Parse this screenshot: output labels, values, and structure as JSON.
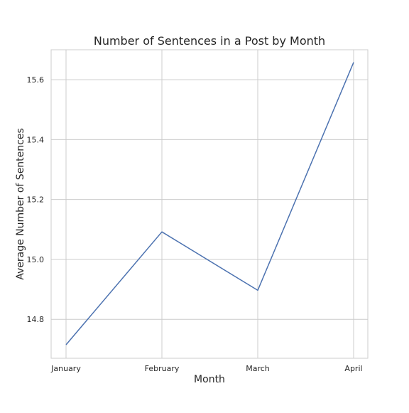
{
  "chart_data": {
    "type": "line",
    "title": "Number of Sentences in a Post by Month",
    "xlabel": "Month",
    "ylabel": "Average Number of Sentences",
    "categories": [
      "January",
      "February",
      "March",
      "April"
    ],
    "series": [
      {
        "values": [
          14.715,
          15.092,
          14.897,
          15.658
        ],
        "color": "#4c72b0"
      }
    ],
    "yticks": [
      14.8,
      15.0,
      15.2,
      15.4,
      15.6
    ],
    "ytick_labels": [
      "14.8",
      "15.0",
      "15.2",
      "15.4",
      "15.6"
    ],
    "ylim": [
      14.67,
      15.7
    ],
    "grid": true,
    "legend": "none"
  }
}
